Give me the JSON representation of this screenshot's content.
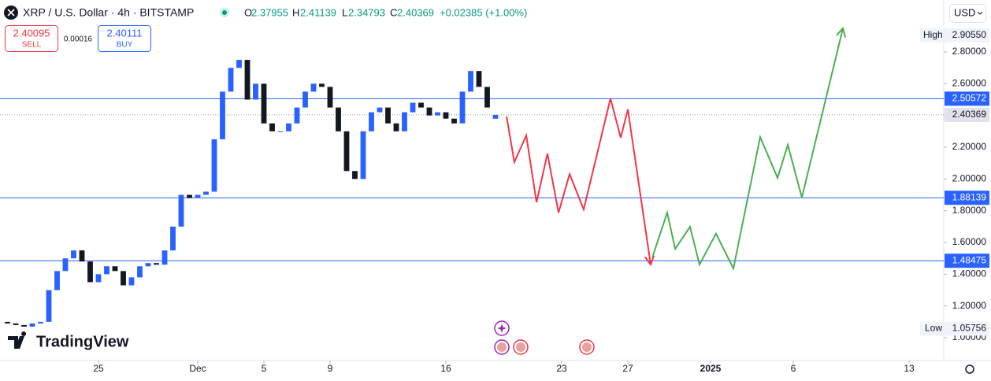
{
  "header": {
    "symbol": "XRP / U.S. Dollar · 4h · BITSTAMP",
    "ohlc": [
      {
        "key": "O",
        "value": "2.37955"
      },
      {
        "key": "H",
        "value": "2.41139"
      },
      {
        "key": "L",
        "value": "2.34793"
      },
      {
        "key": "C",
        "value": "2.40369"
      }
    ],
    "change": "+0.02385 (+1.00%)",
    "sell": {
      "price": "2.40095",
      "label": "SELL"
    },
    "spread": "0.00016",
    "buy": {
      "price": "2.40111",
      "label": "BUY"
    },
    "currency": "USD"
  },
  "logo": "TradingView",
  "chart_data": {
    "type": "candlestick",
    "x": [
      -5.5,
      -5,
      -4.5,
      -4,
      -3.5,
      -3,
      -2.5,
      -2,
      -1.5,
      -1,
      -0.5,
      0,
      0.5,
      1,
      1.5,
      2,
      2.5,
      3,
      3.5,
      4,
      4.5,
      5,
      5.5,
      6,
      6.5,
      7,
      7.5,
      8,
      8.5,
      9,
      9.5,
      10,
      10.5,
      11,
      11.5,
      12,
      12.5,
      13,
      13.5,
      14,
      14.5,
      15,
      15.5,
      16,
      16.5,
      17,
      17.5,
      18,
      18.5,
      19,
      19.5,
      20,
      20.5,
      21,
      21.5,
      22,
      22.5,
      23,
      23.5,
      24
    ],
    "open": [
      1.1,
      1.09,
      1.08,
      1.07,
      1.09,
      1.1,
      1.3,
      1.42,
      1.5,
      1.55,
      1.48,
      1.35,
      1.4,
      1.45,
      1.42,
      1.33,
      1.38,
      1.45,
      1.47,
      1.46,
      1.55,
      1.7,
      1.9,
      1.88,
      1.9,
      1.92,
      2.25,
      2.55,
      2.7,
      2.75,
      2.5,
      2.6,
      2.35,
      2.3,
      2.3,
      2.35,
      2.45,
      2.55,
      2.6,
      2.58,
      2.45,
      2.3,
      2.05,
      2.0,
      2.3,
      2.42,
      2.45,
      2.35,
      2.3,
      2.42,
      2.48,
      2.45,
      2.4,
      2.42,
      2.38,
      2.35,
      2.55,
      2.68,
      2.58,
      2.37955
    ],
    "high": {
      "label": "High",
      "value": 2.9055,
      "value_label": "2.90550"
    },
    "low": {
      "label": "Low",
      "value": 1.05756
    },
    "close": [
      1.09,
      1.08,
      1.07,
      1.09,
      1.1,
      1.3,
      1.42,
      1.5,
      1.55,
      1.48,
      1.35,
      1.4,
      1.45,
      1.42,
      1.33,
      1.38,
      1.45,
      1.47,
      1.46,
      1.55,
      1.7,
      1.9,
      1.88,
      1.9,
      1.92,
      2.25,
      2.55,
      2.7,
      2.75,
      2.5,
      2.6,
      2.35,
      2.3,
      2.3,
      2.35,
      2.45,
      2.55,
      2.6,
      2.58,
      2.45,
      2.3,
      2.05,
      2.0,
      2.3,
      2.42,
      2.45,
      2.35,
      2.3,
      2.42,
      2.48,
      2.45,
      2.4,
      2.42,
      2.38,
      2.35,
      2.55,
      2.68,
      2.58,
      2.45,
      2.40369
    ],
    "up_color": "#2962ff",
    "down_color": "#131722",
    "xlim": [
      -5.952,
      51.095
    ],
    "ylim": [
      0.8563,
      3.1273
    ],
    "xticks": [
      {
        "value": 0,
        "label": "25"
      },
      {
        "value": 6,
        "label": "Dec"
      },
      {
        "value": 10,
        "label": "5"
      },
      {
        "value": 14,
        "label": "9"
      },
      {
        "value": 21,
        "label": "16"
      },
      {
        "value": 28,
        "label": "23"
      },
      {
        "value": 32,
        "label": "27"
      },
      {
        "value": 37,
        "label": "2025"
      },
      {
        "value": 42,
        "label": "6"
      },
      {
        "value": 49,
        "label": "13"
      }
    ],
    "yticks": [
      {
        "value": 1,
        "label": "1.00000"
      },
      {
        "value": 1.2,
        "label": "1.20000"
      },
      {
        "value": 1.4,
        "label": "1.40000"
      },
      {
        "value": 1.6,
        "label": "1.60000"
      },
      {
        "value": 1.8,
        "label": "1.80000"
      },
      {
        "value": 2,
        "label": "2.00000"
      },
      {
        "value": 2.2,
        "label": "2.20000"
      },
      {
        "value": 2.4,
        "label": "2.40000"
      },
      {
        "value": 2.6,
        "label": "2.60000"
      },
      {
        "value": 2.8,
        "label": "2.80000"
      }
    ],
    "levels": [
      2.50572,
      1.88139,
      1.48475
    ],
    "level_color": "#2962ff",
    "last_price": 2.40369,
    "projections": [
      {
        "color": "#f23645",
        "x": [
          24.67,
          25.14,
          25.86,
          26.48,
          27.14,
          27.81,
          28.48,
          29.33,
          30.95,
          31.57,
          32.0,
          33.38
        ],
        "y": [
          2.393,
          2.106,
          2.274,
          1.853,
          2.16,
          1.788,
          2.031,
          1.808,
          2.507,
          2.26,
          2.438,
          1.461
        ]
      },
      {
        "color": "#4caf50",
        "x": [
          33.48,
          34.38,
          34.86,
          35.76,
          36.33,
          37.33,
          38.38,
          40.0,
          41.05,
          41.67,
          42.52,
          45.0
        ],
        "y": [
          1.506,
          1.788,
          1.56,
          1.699,
          1.461,
          1.655,
          1.436,
          2.264,
          2.007,
          2.215,
          1.883,
          2.949
        ]
      }
    ]
  }
}
